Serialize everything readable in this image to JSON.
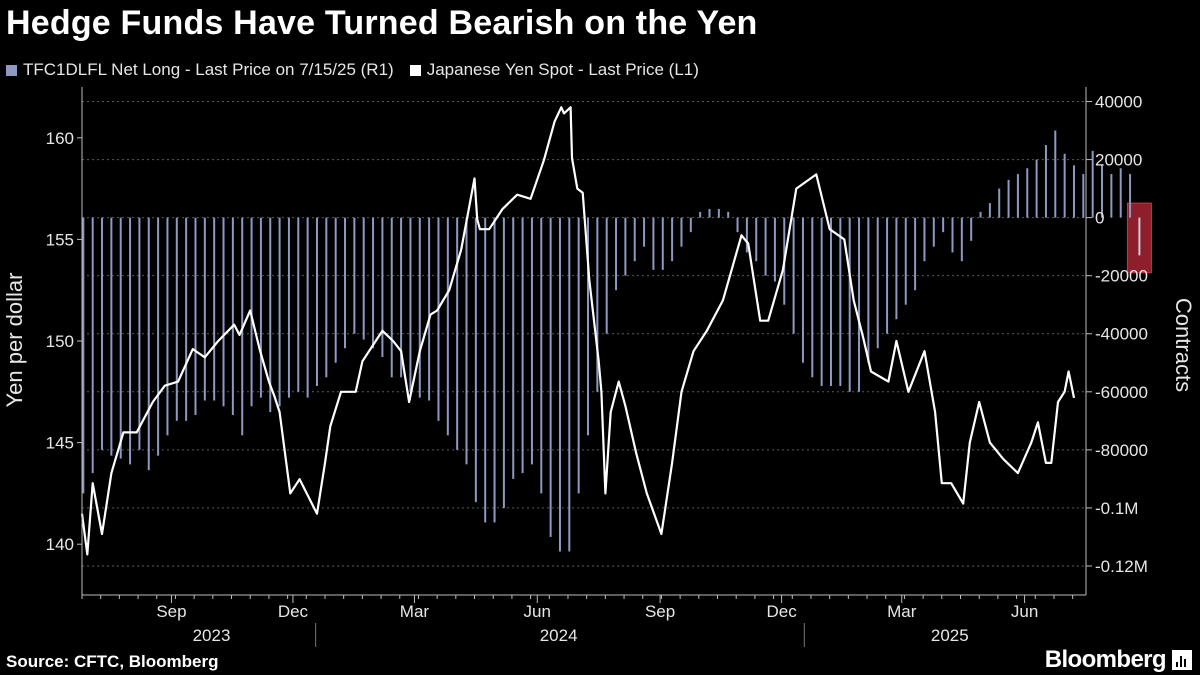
{
  "title": "Hedge Funds Have Turned Bearish on the Yen",
  "source": "Source: CFTC, Bloomberg",
  "brand": "Bloomberg",
  "colors": {
    "bars": "#8e99c1",
    "line": "#ffffff",
    "highlight": "#8e1e2c",
    "grid": "#5a5a5a",
    "axis": "#bdbdbd"
  },
  "chart_data": {
    "type": "line+bar",
    "title": "Hedge Funds Have Turned Bearish on the Yen",
    "ylabel_left": "Yen per dollar",
    "ylabel_right": "Contracts",
    "left_axis": {
      "range": [
        137.5,
        162.5
      ],
      "ticks": [
        140,
        145,
        150,
        155,
        160
      ],
      "tick_labels": [
        "140",
        "145",
        "150",
        "155",
        "160"
      ]
    },
    "right_axis": {
      "range": [
        -130000,
        45000
      ],
      "ticks": [
        40000,
        20000,
        0,
        -20000,
        -40000,
        -60000,
        -80000,
        -100000,
        -120000
      ],
      "tick_labels": [
        "40000",
        "20000",
        "0",
        "-20000",
        "-40000",
        "-60000",
        "-80000",
        "-0.1M",
        "-0.12M"
      ]
    },
    "x_axis": {
      "range": [
        "2023-07-10",
        "2025-07-31"
      ],
      "months": [
        {
          "label": "Sep",
          "date": "2023-09-15"
        },
        {
          "label": "Dec",
          "date": "2023-12-15"
        },
        {
          "label": "Mar",
          "date": "2024-03-15"
        },
        {
          "label": "Jun",
          "date": "2024-06-15"
        },
        {
          "label": "Sep",
          "date": "2024-09-15"
        },
        {
          "label": "Dec",
          "date": "2024-12-15"
        },
        {
          "label": "Mar",
          "date": "2025-03-15"
        },
        {
          "label": "Jun",
          "date": "2025-06-15"
        }
      ],
      "years": [
        {
          "label": "2023",
          "date": "2023-10-15"
        },
        {
          "label": "2024",
          "date": "2024-07-01"
        },
        {
          "label": "2025",
          "date": "2025-04-20"
        }
      ],
      "year_separators": [
        "2024-01-01",
        "2025-01-01"
      ]
    },
    "series": [
      {
        "name": "TFC1DLFL Net Long - Last Price on 7/15/25 (R1)",
        "type": "bar",
        "axis": "right",
        "bar_week_start": "2023-07-11",
        "bar_interval_days": 7,
        "values": [
          -95000,
          -88000,
          -80000,
          -82000,
          -83000,
          -85000,
          -80000,
          -87000,
          -82000,
          -75000,
          -70000,
          -70000,
          -68000,
          -63000,
          -63000,
          -65000,
          -68000,
          -75000,
          -65000,
          -62000,
          -67000,
          -65000,
          -62000,
          -60000,
          -62000,
          -58000,
          -55000,
          -50000,
          -45000,
          -40000,
          -42000,
          -45000,
          -48000,
          -55000,
          -55000,
          -60000,
          -62000,
          -63000,
          -70000,
          -75000,
          -80000,
          -85000,
          -98000,
          -105000,
          -105000,
          -100000,
          -90000,
          -88000,
          -85000,
          -95000,
          -110000,
          -115000,
          -115000,
          -95000,
          -75000,
          -60000,
          -40000,
          -25000,
          -20000,
          -15000,
          -10000,
          -18000,
          -18000,
          -15000,
          -10000,
          -5000,
          2000,
          3000,
          3000,
          2000,
          -5000,
          -12000,
          -15000,
          -20000,
          -22000,
          -30000,
          -40000,
          -50000,
          -55000,
          -58000,
          -58000,
          -58000,
          -60000,
          -60000,
          -50000,
          -45000,
          -40000,
          -35000,
          -30000,
          -25000,
          -15000,
          -10000,
          -5000,
          -12000,
          -15000,
          -8000,
          2000,
          5000,
          10000,
          13000,
          15000,
          17000,
          20000,
          25000,
          30000,
          22000,
          18000,
          15000,
          23000,
          18000,
          15000,
          17000,
          15000,
          -13000
        ]
      },
      {
        "name": "Japanese Yen Spot - Last Price (L1)",
        "type": "line",
        "axis": "left",
        "dates": [
          "2023-07-10",
          "2023-07-14",
          "2023-07-18",
          "2023-07-25",
          "2023-08-01",
          "2023-08-10",
          "2023-08-20",
          "2023-09-01",
          "2023-09-10",
          "2023-09-20",
          "2023-10-01",
          "2023-10-10",
          "2023-10-20",
          "2023-11-01",
          "2023-11-05",
          "2023-11-13",
          "2023-11-20",
          "2023-11-27",
          "2023-12-01",
          "2023-12-05",
          "2023-12-08",
          "2023-12-13",
          "2023-12-20",
          "2024-01-02",
          "2024-01-08",
          "2024-01-12",
          "2024-01-20",
          "2024-01-31",
          "2024-02-05",
          "2024-02-15",
          "2024-02-20",
          "2024-02-28",
          "2024-03-05",
          "2024-03-11",
          "2024-03-19",
          "2024-03-27",
          "2024-04-01",
          "2024-04-10",
          "2024-04-19",
          "2024-04-29",
          "2024-05-01",
          "2024-05-03",
          "2024-05-10",
          "2024-05-20",
          "2024-05-31",
          "2024-06-10",
          "2024-06-20",
          "2024-06-28",
          "2024-07-03",
          "2024-07-05",
          "2024-07-10",
          "2024-07-11",
          "2024-07-15",
          "2024-07-19",
          "2024-07-24",
          "2024-07-31",
          "2024-08-02",
          "2024-08-05",
          "2024-08-09",
          "2024-08-15",
          "2024-08-20",
          "2024-08-28",
          "2024-09-05",
          "2024-09-16",
          "2024-09-24",
          "2024-10-01",
          "2024-10-10",
          "2024-10-20",
          "2024-11-01",
          "2024-11-15",
          "2024-11-20",
          "2024-11-29",
          "2024-12-05",
          "2024-12-16",
          "2024-12-26",
          "2025-01-10",
          "2025-01-20",
          "2025-01-31",
          "2025-02-07",
          "2025-02-14",
          "2025-02-20",
          "2025-03-05",
          "2025-03-11",
          "2025-03-20",
          "2025-04-01",
          "2025-04-09",
          "2025-04-14",
          "2025-04-21",
          "2025-04-30",
          "2025-05-05",
          "2025-05-12",
          "2025-05-20",
          "2025-05-30",
          "2025-06-10",
          "2025-06-20",
          "2025-06-25",
          "2025-07-01",
          "2025-07-05",
          "2025-07-10",
          "2025-07-15",
          "2025-07-18",
          "2025-07-22"
        ],
        "values": [
          141.5,
          139.5,
          143,
          140.5,
          143.5,
          145.5,
          145.5,
          147,
          147.8,
          148,
          149.6,
          149.2,
          150,
          150.8,
          150.3,
          151.5,
          149.6,
          148,
          147.3,
          146.5,
          145,
          142.5,
          143.2,
          141.5,
          144,
          145.8,
          147.5,
          147.5,
          149,
          150,
          150.5,
          150,
          149.5,
          147,
          149.5,
          151.3,
          151.5,
          152.5,
          154.5,
          158,
          156,
          155.5,
          155.5,
          156.5,
          157.2,
          157,
          158.9,
          160.8,
          161.5,
          161.2,
          161.5,
          159,
          157.5,
          157.3,
          153,
          149,
          147.5,
          142.5,
          146.5,
          148,
          146.8,
          144.5,
          142.5,
          140.5,
          144,
          147.5,
          149.5,
          150.5,
          152,
          155.2,
          154.8,
          151,
          151,
          153.5,
          157.5,
          158.2,
          155.5,
          155,
          152,
          150.2,
          148.5,
          148,
          150,
          147.5,
          149.5,
          146.5,
          143,
          143,
          142,
          145,
          147,
          145,
          144.2,
          143.5,
          145,
          146,
          144,
          144,
          147,
          147.5,
          148.5,
          147.2
        ]
      }
    ]
  }
}
